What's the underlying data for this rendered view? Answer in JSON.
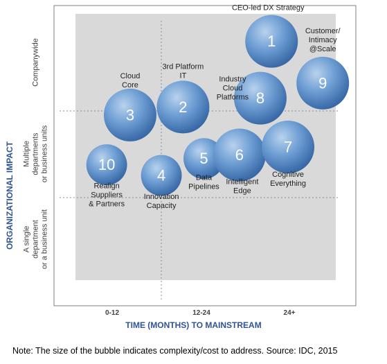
{
  "chart_data": {
    "type": "bubble",
    "xlabel": "TIME (MONTHS) TO MAINSTREAM",
    "ylabel": "ORGANIZATIONAL IMPACT",
    "x_categories": [
      "0-12",
      "12-24",
      "24+"
    ],
    "y_categories": [
      "A single department or a business unit",
      "Multiple departments or business units",
      "Companywide"
    ],
    "y_category_lines": [
      [
        "A single",
        "department",
        "or a business unit"
      ],
      [
        "Multiple",
        "departments",
        "or business units"
      ],
      [
        "Companywide"
      ]
    ],
    "xlim": [
      0,
      3
    ],
    "ylim": [
      0,
      3
    ],
    "grid": "dotted quadrant dividers",
    "bubbles": [
      {
        "id": "1",
        "label": [
          "CEO-led DX Strategy"
        ],
        "x": 2.26,
        "y": 2.69,
        "size": 1.0
      },
      {
        "id": "2",
        "label": [
          "3rd Platform",
          "IT"
        ],
        "x": 1.24,
        "y": 1.95,
        "size": 1.0
      },
      {
        "id": "3",
        "label": [
          "Cloud",
          "Core"
        ],
        "x": 0.63,
        "y": 1.86,
        "size": 1.0
      },
      {
        "id": "4",
        "label": [
          "Innovation",
          "Capacity"
        ],
        "x": 0.99,
        "y": 1.18,
        "size": 0.6
      },
      {
        "id": "5",
        "label": [
          "Data",
          "Pipelines"
        ],
        "x": 1.48,
        "y": 1.37,
        "size": 0.6
      },
      {
        "id": "6",
        "label": [
          "Intelligent",
          "Edge"
        ],
        "x": 1.89,
        "y": 1.41,
        "size": 1.0
      },
      {
        "id": "7",
        "label": [
          "Cognitive",
          "Everything"
        ],
        "x": 2.45,
        "y": 1.5,
        "size": 1.0
      },
      {
        "id": "8",
        "label": [
          "Industry",
          "Cloud",
          "Platforms"
        ],
        "x": 2.13,
        "y": 2.05,
        "size": 1.0
      },
      {
        "id": "9",
        "label": [
          "Customer/",
          "Intimacy",
          "@Scale"
        ],
        "x": 2.85,
        "y": 2.22,
        "size": 1.0
      },
      {
        "id": "10",
        "label": [
          "Realign",
          "Suppliers",
          "& Partners"
        ],
        "x": 0.36,
        "y": 1.3,
        "size": 0.6
      }
    ]
  },
  "note": "Note: The size of the bubble indicates complexity/cost to address. Source: IDC, 2015",
  "colors": {
    "bubble": "#5b8fc9",
    "bubble_dark": "#2e5f9c",
    "plot_bg": "#d9d9d9",
    "axis_title": "#2f5496"
  }
}
